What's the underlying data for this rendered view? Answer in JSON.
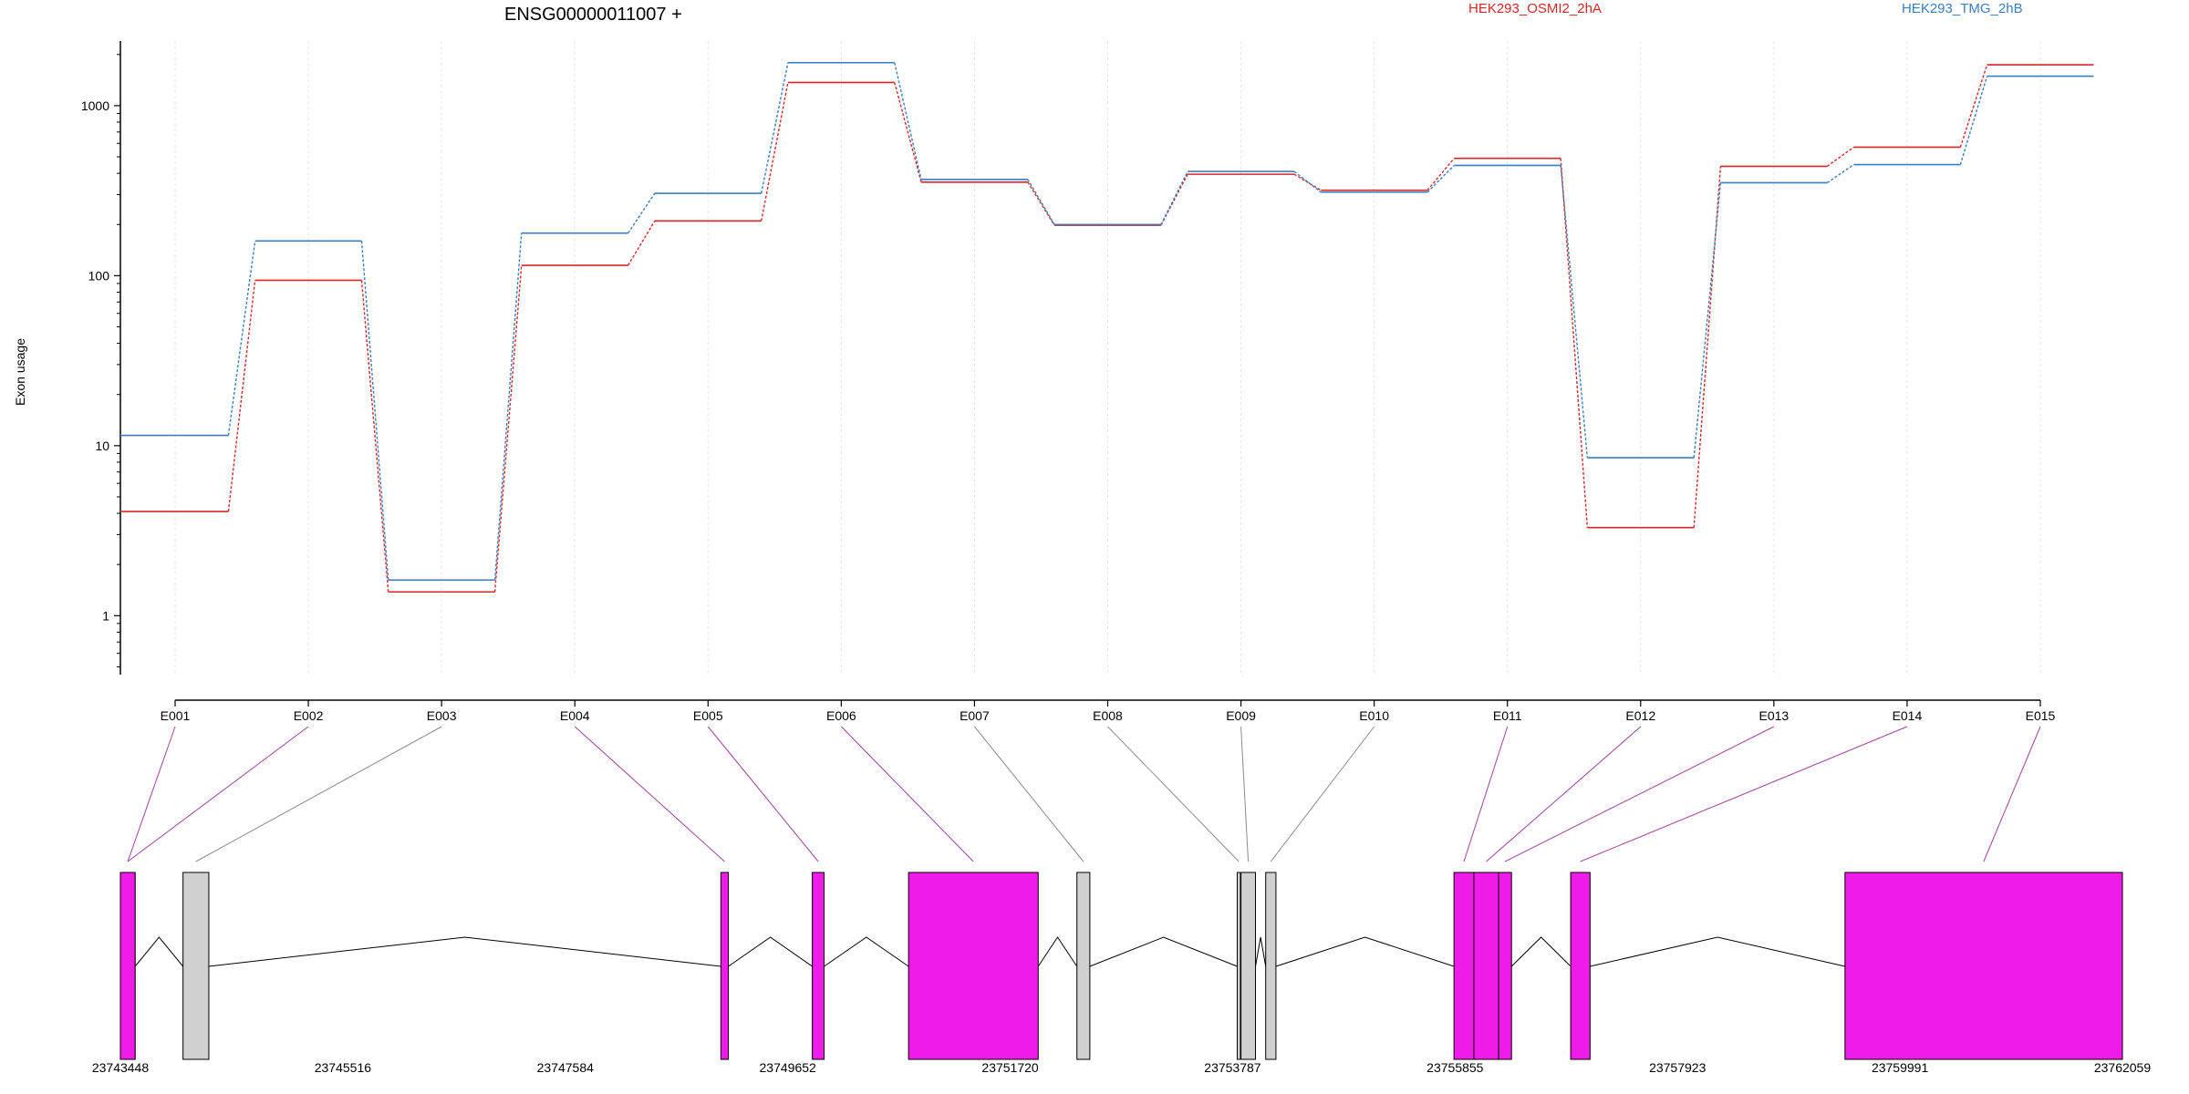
{
  "chart_data": {
    "type": "line",
    "title": "ENSG00000011007 +",
    "ylabel": "Exon usage",
    "yscale": "log",
    "ylim": [
      0.45,
      2400
    ],
    "yticks": [
      1,
      10,
      100,
      1000
    ],
    "ytick_labels": [
      "1",
      "10",
      "100",
      "1000"
    ],
    "categories": [
      "E001",
      "E002",
      "E003",
      "E004",
      "E005",
      "E006",
      "E007",
      "E008",
      "E009",
      "E010",
      "E011",
      "E012",
      "E013",
      "E014",
      "E015"
    ],
    "series": [
      {
        "name": "HEK293_OSMI2_2hA",
        "color": "#d62728",
        "values": [
          4.1,
          94,
          1.38,
          115,
          210,
          1370,
          355,
          198,
          395,
          318,
          490,
          3.3,
          440,
          570,
          1740
        ]
      },
      {
        "name": "HEK293_TMG_2hB",
        "color": "#3a7dc0",
        "values": [
          11.5,
          160,
          1.62,
          178,
          305,
          1790,
          368,
          200,
          410,
          310,
          445,
          8.5,
          352,
          450,
          1490
        ]
      }
    ],
    "genomic_axis": {
      "tick_labels": [
        "23743448",
        "23745516",
        "23747584",
        "23749652",
        "23751720",
        "23753787",
        "23755855",
        "23757923",
        "23759991",
        "23762059"
      ],
      "range": [
        23743448,
        23762059
      ]
    },
    "exon_model": {
      "highlight_color": "#ef1be9",
      "base_color": "#d0d0d0",
      "exons": [
        {
          "id": "E001",
          "start": 23743448,
          "end": 23743585,
          "highlighted": true
        },
        {
          "id": "E002",
          "start": 23743448,
          "end": 23743585,
          "highlighted": true
        },
        {
          "id": "E003",
          "start": 23744030,
          "end": 23744270,
          "highlighted": false
        },
        {
          "id": "E004",
          "start": 23749030,
          "end": 23749100,
          "highlighted": true
        },
        {
          "id": "E005",
          "start": 23749880,
          "end": 23749990,
          "highlighted": true
        },
        {
          "id": "E006",
          "start": 23750775,
          "end": 23751980,
          "highlighted": true
        },
        {
          "id": "E007",
          "start": 23752340,
          "end": 23752460,
          "highlighted": false
        },
        {
          "id": "E008",
          "start": 23753830,
          "end": 23753860,
          "highlighted": false
        },
        {
          "id": "E009",
          "start": 23753865,
          "end": 23754000,
          "highlighted": false
        },
        {
          "id": "E010",
          "start": 23754095,
          "end": 23754190,
          "highlighted": false
        },
        {
          "id": "E011",
          "start": 23755845,
          "end": 23756030,
          "highlighted": true
        },
        {
          "id": "E012",
          "start": 23756030,
          "end": 23756260,
          "highlighted": true
        },
        {
          "id": "E013",
          "start": 23756260,
          "end": 23756380,
          "highlighted": true
        },
        {
          "id": "E014",
          "start": 23756930,
          "end": 23757110,
          "highlighted": true
        },
        {
          "id": "E015",
          "start": 23759480,
          "end": 23762059,
          "highlighted": true
        }
      ]
    }
  }
}
